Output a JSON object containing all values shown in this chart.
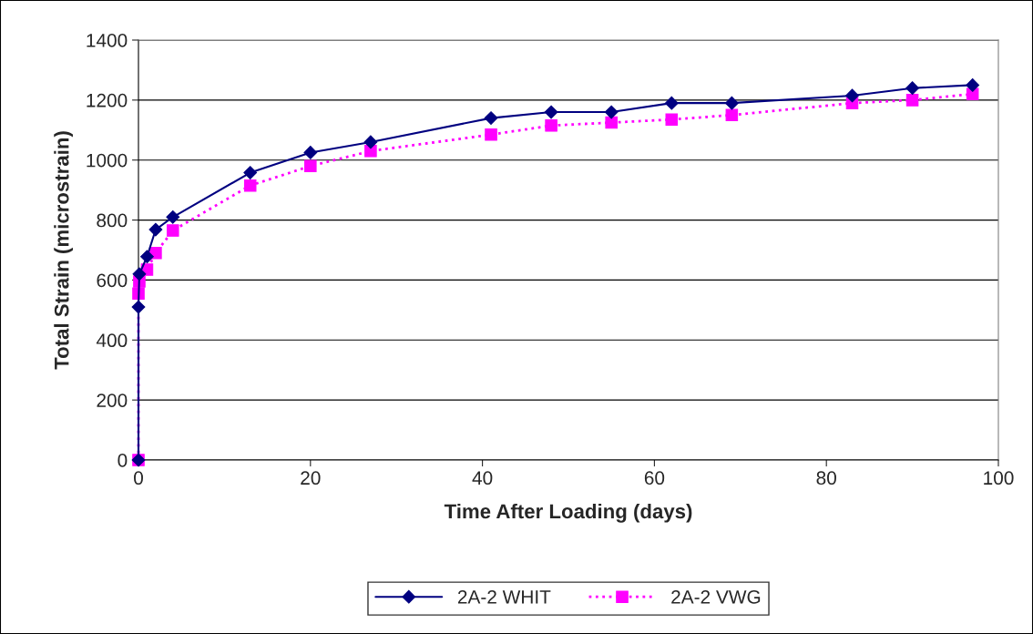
{
  "chart_data": {
    "type": "line",
    "xlabel": "Time After Loading (days)",
    "ylabel": "Total Strain (microstrain)",
    "xlim": [
      0,
      100
    ],
    "xticks": [
      0,
      20,
      40,
      60,
      80,
      100
    ],
    "ylim": [
      0,
      1400
    ],
    "yticks": [
      0,
      200,
      400,
      600,
      800,
      1000,
      1200,
      1400
    ],
    "grid": "y",
    "legend": "bottom",
    "series": [
      {
        "name": "2A-2 WHIT",
        "color": "#000080",
        "marker": "diamond",
        "line_style": "solid",
        "x": [
          0,
          0,
          0.1,
          1,
          2,
          4,
          13,
          20,
          27,
          41,
          48,
          55,
          62,
          69,
          83,
          90,
          97
        ],
        "values": [
          0,
          510,
          620,
          678,
          768,
          810,
          958,
          1025,
          1060,
          1140,
          1160,
          1160,
          1190,
          1190,
          1215,
          1240,
          1250
        ]
      },
      {
        "name": "2A-2 VWG",
        "color": "#ff00ff",
        "marker": "square",
        "line_style": "dotted",
        "x": [
          0,
          0,
          0.1,
          1,
          2,
          4,
          13,
          20,
          27,
          41,
          48,
          55,
          62,
          69,
          83,
          90,
          97
        ],
        "values": [
          0,
          555,
          595,
          635,
          690,
          765,
          915,
          980,
          1030,
          1085,
          1115,
          1125,
          1135,
          1150,
          1190,
          1200,
          1220
        ]
      }
    ]
  }
}
